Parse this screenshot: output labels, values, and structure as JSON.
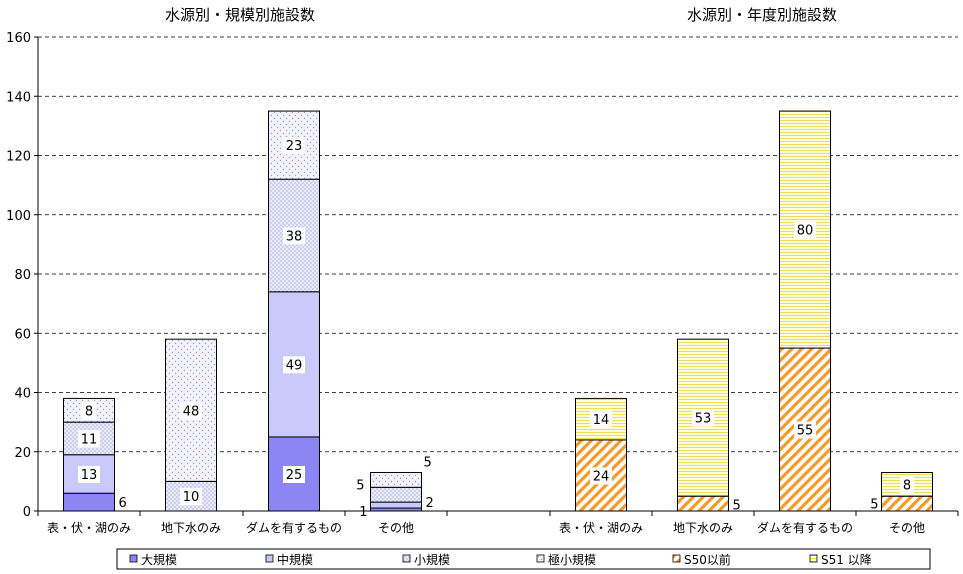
{
  "chart_data": {
    "type": "bar",
    "stacked": true,
    "ylim": [
      0,
      160
    ],
    "yticks": [
      0,
      20,
      40,
      60,
      80,
      100,
      120,
      140,
      160
    ],
    "grid": "dashed-horizontal",
    "legend_position": "bottom",
    "colors": {
      "大規模": "#8b86f4",
      "中規模": "#c9c9fb",
      "小規模": "#ecedfb",
      "極小規模": "#f6f6fe",
      "S50以前": "#f6a232",
      "S51 以降": "#fbf7a8"
    },
    "groups": [
      {
        "title": "水源別・規模別施設数",
        "categories": [
          "表・伏・湖のみ",
          "地下水のみ",
          "ダムを有するもの",
          "その他"
        ],
        "series": [
          {
            "name": "大規模",
            "values": [
              6,
              0,
              25,
              1
            ]
          },
          {
            "name": "中規模",
            "values": [
              13,
              0,
              49,
              2
            ]
          },
          {
            "name": "小規模",
            "values": [
              11,
              10,
              38,
              5
            ]
          },
          {
            "name": "極小規模",
            "values": [
              8,
              48,
              23,
              5
            ]
          }
        ]
      },
      {
        "title": "水源別・年度別施設数",
        "categories": [
          "表・伏・湖のみ",
          "地下水のみ",
          "ダムを有するもの",
          "その他"
        ],
        "series": [
          {
            "name": "S50以前",
            "values": [
              24,
              5,
              55,
              5
            ]
          },
          {
            "name": "S51 以降",
            "values": [
              14,
              53,
              80,
              8
            ]
          }
        ]
      }
    ],
    "legend": [
      "大規模",
      "中規模",
      "小規模",
      "極小規模",
      "S50以前",
      "S51 以降"
    ]
  }
}
